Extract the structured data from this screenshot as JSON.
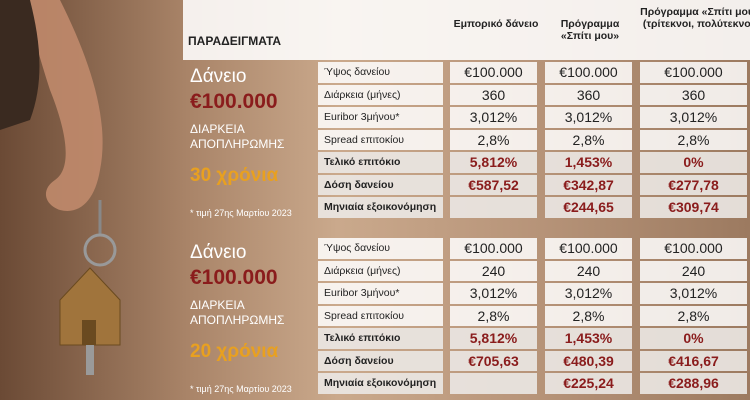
{
  "header": {
    "title": "ΠΑΡΑΔΕΙΓΜΑΤΑ",
    "columns": [
      "Εμπορικό δάνειο",
      "Πρόγραμμα «Σπίτι μου»",
      "Πρόγραμμα «Σπίτι μου» (τρίτεκνοι, πολύτεκνοι)"
    ]
  },
  "sections": [
    {
      "loan_label": "Δάνειο",
      "amount": "€100.000",
      "duration_label": "ΔΙΑΡΚΕΙΑ ΑΠΟΠΛΗΡΩΜΗΣ",
      "duration": "30 χρόνια",
      "note": "* τιμή 27ης Μαρτίου 2023",
      "rows": [
        [
          "Ύψος δανείου",
          "€100.000",
          "€100.000",
          "€100.000"
        ],
        [
          "Διάρκεια (μήνες)",
          "360",
          "360",
          "360"
        ],
        [
          "Euribor 3μήνου*",
          "3,012%",
          "3,012%",
          "3,012%"
        ],
        [
          "Spread επιτοκίου",
          "2,8%",
          "2,8%",
          "2,8%"
        ],
        [
          "Τελικό επιτόκιο",
          "5,812%",
          "1,453%",
          "0%"
        ],
        [
          "Δόση δανείου",
          "€587,52",
          "€342,87",
          "€277,78"
        ],
        [
          "Μηνιαία εξοικονόμηση",
          null,
          "€244,65",
          "€309,74"
        ]
      ]
    },
    {
      "loan_label": "Δάνειο",
      "amount": "€100.000",
      "duration_label": "ΔΙΑΡΚΕΙΑ ΑΠΟΠΛΗΡΩΜΗΣ",
      "duration": "20 χρόνια",
      "note": "* τιμή 27ης Μαρτίου 2023",
      "rows": [
        [
          "Ύψος δανείου",
          "€100.000",
          "€100.000",
          "€100.000"
        ],
        [
          "Διάρκεια (μήνες)",
          "240",
          "240",
          "240"
        ],
        [
          "Euribor 3μήνου*",
          "3,012%",
          "3,012%",
          "3,012%"
        ],
        [
          "Spread επιτοκίου",
          "2,8%",
          "2,8%",
          "2,8%"
        ],
        [
          "Τελικό επιτόκιο",
          "5,812%",
          "1,453%",
          "0%"
        ],
        [
          "Δόση δανείου",
          "€705,63",
          "€480,39",
          "€416,67"
        ],
        [
          "Μηνιαία εξοικονόμηση",
          null,
          "€225,24",
          "€288,96"
        ]
      ]
    }
  ]
}
